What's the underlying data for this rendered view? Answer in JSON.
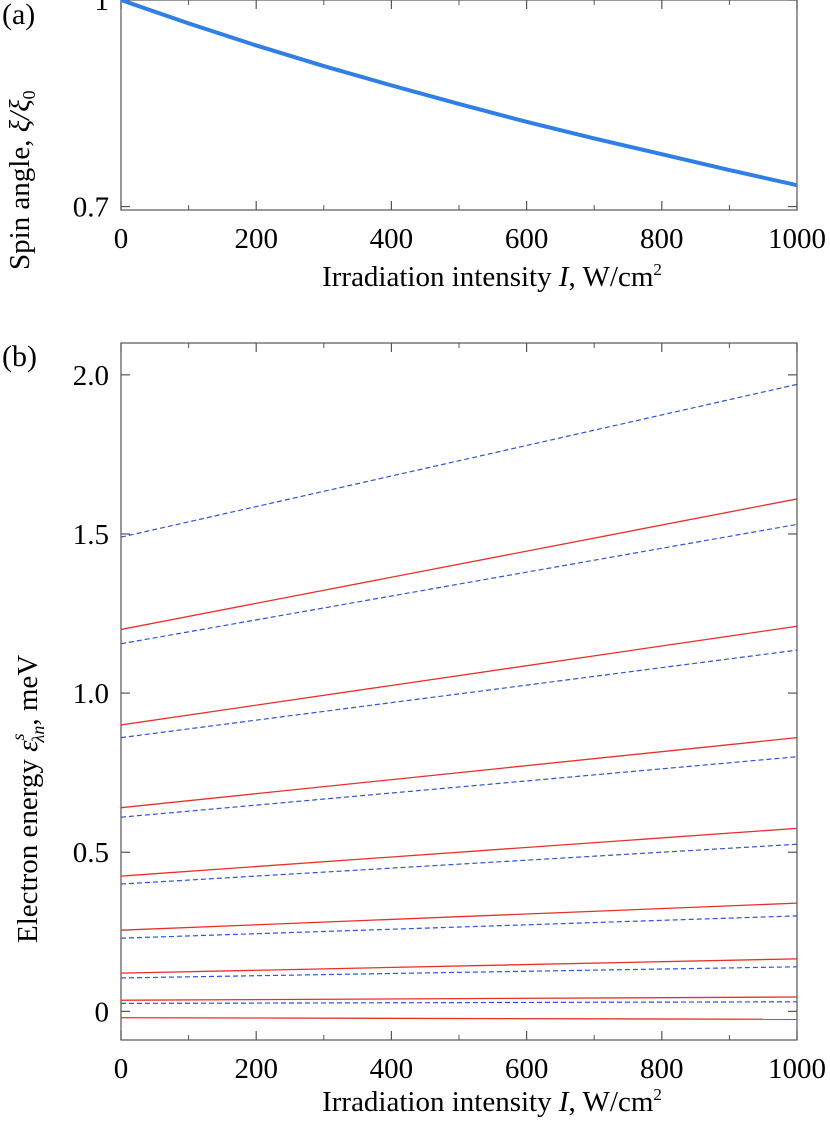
{
  "chart_data": [
    {
      "panel": "(a)",
      "type": "line",
      "xlabel_text": "Irradiation intensity",
      "xlabel_var": "I",
      "xlabel_unit": ", W/cm",
      "xlabel_unit_sup": "2",
      "ylabel_text": "Spin angle, ",
      "ylabel_ratio": "ξ/ξ",
      "ylabel_sub": "0",
      "xlim": [
        0,
        1000
      ],
      "ylim": [
        0.695,
        1.0
      ],
      "xticks": [
        0,
        200,
        400,
        600,
        800,
        1000
      ],
      "yticks": [
        0.7,
        1
      ],
      "ytick_labels": [
        "0.7",
        "1"
      ],
      "series": [
        {
          "color": "#2f7fe6",
          "style": "solid",
          "x": [
            0,
            100,
            200,
            300,
            400,
            500,
            600,
            700,
            800,
            900,
            1000
          ],
          "values": [
            1.0,
            0.966,
            0.934,
            0.904,
            0.876,
            0.849,
            0.823,
            0.799,
            0.776,
            0.753,
            0.731
          ]
        }
      ]
    },
    {
      "panel": "(b)",
      "type": "line",
      "xlabel_text": "Irradiation intensity",
      "xlabel_var": "I",
      "xlabel_unit": ", W/cm",
      "xlabel_unit_sup": "2",
      "ylabel_text": "Electron energy ",
      "ylabel_symbol": "ε",
      "ylabel_sup": "s",
      "ylabel_sub": "λn",
      "ylabel_unit": ",  meV",
      "xlim": [
        0,
        1000
      ],
      "ylim": [
        -0.09,
        2.1
      ],
      "xticks": [
        0,
        200,
        400,
        600,
        800,
        1000
      ],
      "yticks": [
        0,
        0.5,
        1.0,
        1.5,
        2.0
      ],
      "ytick_labels": [
        "0",
        "0.5",
        "1.0",
        "1.5",
        "2.0"
      ],
      "x": [
        0,
        1000
      ],
      "red_solid": [
        [
          -0.02,
          -0.025
        ],
        [
          0.035,
          0.045
        ],
        [
          0.12,
          0.165
        ],
        [
          0.255,
          0.34
        ],
        [
          0.425,
          0.575
        ],
        [
          0.64,
          0.86
        ],
        [
          0.9,
          1.21
        ],
        [
          1.2,
          1.61
        ]
      ],
      "blue_dashed": [
        [
          0.025,
          0.03
        ],
        [
          0.105,
          0.14
        ],
        [
          0.23,
          0.3
        ],
        [
          0.4,
          0.525
        ],
        [
          0.61,
          0.8
        ],
        [
          0.86,
          1.135
        ],
        [
          1.155,
          1.53
        ],
        [
          1.49,
          1.97
        ]
      ],
      "red_color": "#e8302a",
      "blue_color": "#2f55d4"
    }
  ]
}
